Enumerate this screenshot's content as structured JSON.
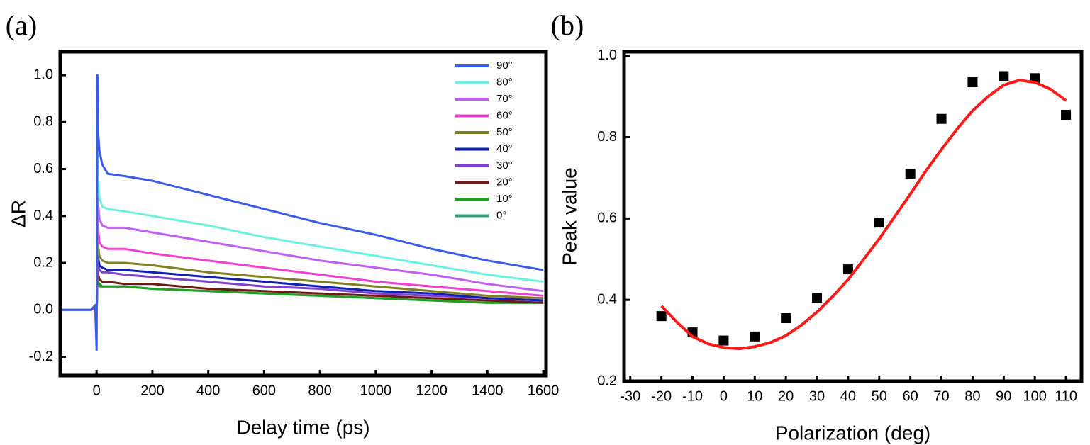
{
  "chart_data": [
    {
      "type": "line",
      "label": "(a)",
      "x_label": "Delay time (ps)",
      "y_label": "ΔR",
      "x": [
        -130,
        -20,
        -5,
        0,
        3,
        6,
        10,
        20,
        40,
        100,
        200,
        400,
        600,
        800,
        1000,
        1200,
        1400,
        1600
      ],
      "series": [
        {
          "name": "90°",
          "color": "#3b5ce8",
          "values": [
            0,
            0,
            0.02,
            -0.17,
            1.0,
            0.75,
            0.68,
            0.62,
            0.58,
            0.57,
            0.55,
            0.49,
            0.43,
            0.37,
            0.32,
            0.26,
            0.21,
            0.17
          ]
        },
        {
          "name": "80°",
          "color": "#6ef0e0",
          "values": [
            0,
            0,
            0.02,
            -0.15,
            0.75,
            0.55,
            0.48,
            0.44,
            0.43,
            0.42,
            0.4,
            0.36,
            0.31,
            0.27,
            0.23,
            0.19,
            0.15,
            0.12
          ]
        },
        {
          "name": "70°",
          "color": "#c060f0",
          "values": [
            0,
            0,
            0.01,
            -0.12,
            0.62,
            0.45,
            0.39,
            0.36,
            0.35,
            0.35,
            0.33,
            0.29,
            0.25,
            0.21,
            0.18,
            0.15,
            0.11,
            0.08
          ]
        },
        {
          "name": "60°",
          "color": "#f040d0",
          "values": [
            0,
            0,
            0.01,
            -0.1,
            0.48,
            0.34,
            0.29,
            0.27,
            0.26,
            0.26,
            0.24,
            0.21,
            0.18,
            0.15,
            0.12,
            0.1,
            0.08,
            0.06
          ]
        },
        {
          "name": "50°",
          "color": "#808020",
          "values": [
            0,
            0,
            0.01,
            -0.08,
            0.38,
            0.27,
            0.23,
            0.21,
            0.2,
            0.2,
            0.19,
            0.16,
            0.14,
            0.12,
            0.1,
            0.08,
            0.06,
            0.05
          ]
        },
        {
          "name": "40°",
          "color": "#1020b0",
          "values": [
            0,
            0,
            0.01,
            -0.07,
            0.31,
            0.22,
            0.19,
            0.18,
            0.17,
            0.17,
            0.16,
            0.14,
            0.12,
            0.1,
            0.08,
            0.07,
            0.05,
            0.04
          ]
        },
        {
          "name": "30°",
          "color": "#8040d0",
          "values": [
            0,
            0,
            0.01,
            -0.06,
            0.27,
            0.2,
            0.17,
            0.16,
            0.16,
            0.15,
            0.14,
            0.12,
            0.1,
            0.09,
            0.07,
            0.06,
            0.05,
            0.04
          ]
        },
        {
          "name": "20°",
          "color": "#701818",
          "values": [
            0,
            0,
            0.01,
            -0.05,
            0.22,
            0.15,
            0.13,
            0.12,
            0.12,
            0.11,
            0.11,
            0.09,
            0.08,
            0.07,
            0.06,
            0.05,
            0.04,
            0.03
          ]
        },
        {
          "name": "10°",
          "color": "#20a020",
          "values": [
            0,
            0,
            0.01,
            -0.04,
            0.17,
            0.12,
            0.11,
            0.1,
            0.1,
            0.1,
            0.09,
            0.08,
            0.07,
            0.06,
            0.05,
            0.04,
            0.03,
            0.03
          ]
        },
        {
          "name": "0°",
          "color": "#30a080",
          "values": [
            0,
            0,
            0.01,
            -0.03,
            0.15,
            0.11,
            0.1,
            0.1,
            0.1,
            0.1,
            0.09,
            0.08,
            0.07,
            0.06,
            0.05,
            0.04,
            0.03,
            0.03
          ]
        }
      ],
      "xlim": [
        -130,
        1610
      ],
      "xticks": [
        0,
        200,
        400,
        600,
        800,
        1000,
        1200,
        1400,
        1600
      ],
      "ylim": [
        -0.28,
        1.1
      ],
      "yticks": [
        -0.2,
        {
          "value": 0,
          "label": "0.0"
        },
        0.2,
        0.4,
        0.6,
        0.8,
        {
          "value": 1,
          "label": "1.0"
        }
      ],
      "legend": "upper right"
    },
    {
      "type": "scatter",
      "label": "(b)",
      "x_label": "Polarization (deg)",
      "y_label": "Peak value",
      "series": [
        {
          "style": "markers",
          "color": "#000000",
          "x": [
            -20,
            -10,
            0,
            10,
            20,
            30,
            40,
            50,
            60,
            70,
            80,
            90,
            100,
            110
          ],
          "values": [
            0.36,
            0.32,
            0.3,
            0.31,
            0.355,
            0.405,
            0.475,
            0.59,
            0.71,
            0.845,
            0.935,
            0.95,
            0.945,
            0.855
          ]
        },
        {
          "style": "line",
          "color": "#ff1a1a",
          "x": [
            -20,
            -15,
            -10,
            -5,
            0,
            5,
            10,
            15,
            20,
            25,
            30,
            35,
            40,
            45,
            50,
            55,
            60,
            65,
            70,
            75,
            80,
            85,
            90,
            95,
            100,
            105,
            110
          ],
          "values": [
            0.385,
            0.345,
            0.31,
            0.292,
            0.283,
            0.28,
            0.285,
            0.295,
            0.312,
            0.338,
            0.37,
            0.408,
            0.45,
            0.5,
            0.55,
            0.605,
            0.66,
            0.717,
            0.77,
            0.82,
            0.865,
            0.9,
            0.928,
            0.94,
            0.935,
            0.918,
            0.89
          ]
        }
      ],
      "xlim": [
        -32,
        115
      ],
      "xticks": [
        -30,
        -20,
        -10,
        0,
        10,
        20,
        30,
        40,
        50,
        60,
        70,
        80,
        90,
        100,
        110
      ],
      "ylim": [
        0.2,
        1.01
      ],
      "yticks": [
        0.2,
        0.4,
        0.6,
        0.8,
        {
          "value": 1,
          "label": "1.0"
        }
      ]
    }
  ]
}
